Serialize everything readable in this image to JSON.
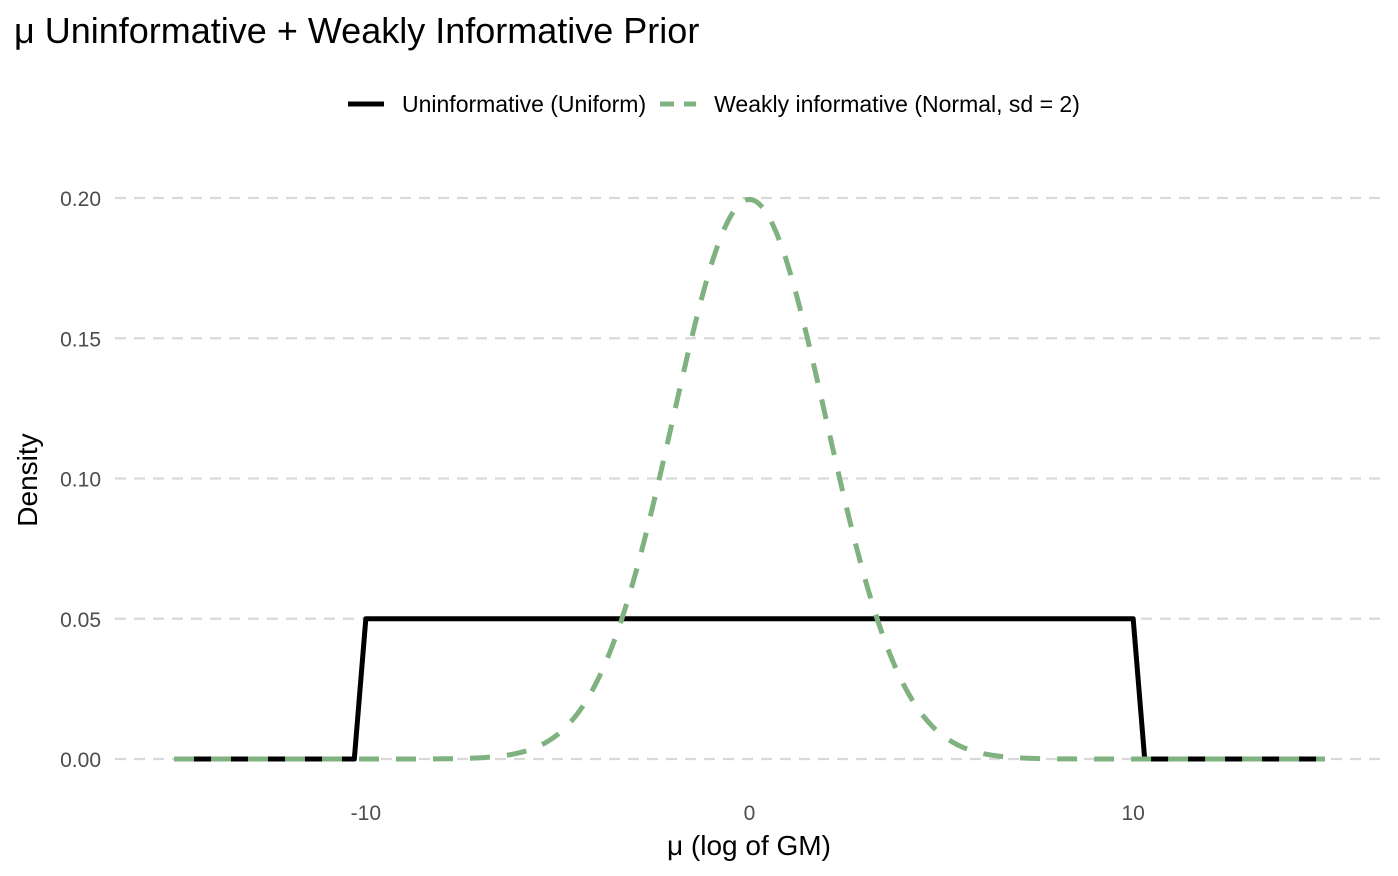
{
  "chart_data": {
    "type": "line",
    "title": "μ Uninformative + Weakly Informative Prior",
    "xlabel": "μ (log of GM)",
    "ylabel": "Density",
    "xlim": [
      -15,
      15
    ],
    "ylim": [
      0,
      0.2
    ],
    "x_ticks": [
      -10,
      0,
      10
    ],
    "x_tick_labels": [
      "-10",
      "0",
      "10"
    ],
    "y_ticks": [
      0,
      0.05,
      0.1,
      0.15,
      0.2
    ],
    "y_tick_labels": [
      "0.00",
      "0.05",
      "0.10",
      "0.15",
      "0.20"
    ],
    "grid": "horizontal dashed major lines",
    "legend_position": "top",
    "series": [
      {
        "name": "Uninformative (Uniform)",
        "color": "#000000",
        "linestyle": "solid",
        "x": [
          -15,
          -10.3,
          -10,
          10,
          10.3,
          15
        ],
        "y": [
          0,
          0,
          0.05,
          0.05,
          0,
          0
        ]
      },
      {
        "name": "Weakly informative (Normal, sd = 2)",
        "color": "#7fb27f",
        "linestyle": "dashed",
        "distribution": {
          "family": "normal",
          "mean": 0,
          "sd": 2
        },
        "x_range": [
          -15,
          15
        ]
      }
    ]
  }
}
